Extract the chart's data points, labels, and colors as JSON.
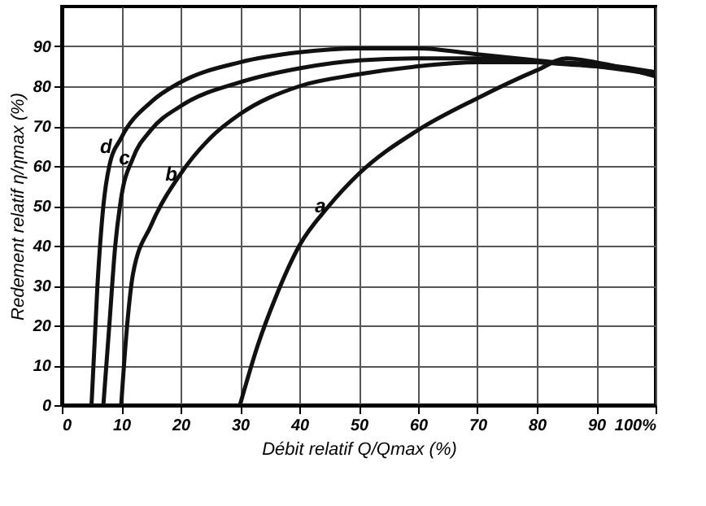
{
  "chart_data": {
    "type": "line",
    "xlabel": "Débit relatif Q/Qmax (%)",
    "ylabel": "Redement relatif η/ηmax (%)",
    "xlim": [
      0,
      100
    ],
    "ylim": [
      0,
      100
    ],
    "xticks": [
      0,
      10,
      20,
      30,
      40,
      50,
      60,
      70,
      80,
      90,
      {
        "value": 100,
        "label": "100%"
      }
    ],
    "yticks": [
      0,
      10,
      20,
      30,
      40,
      50,
      60,
      70,
      80,
      90
    ],
    "grid": true,
    "marker": "none",
    "line_style": "solid",
    "series": [
      {
        "color": "#111111",
        "x": [
          30,
          33,
          36,
          40,
          45,
          50,
          60,
          70,
          80,
          85,
          90,
          100
        ],
        "values": [
          0,
          15,
          27,
          40,
          50,
          58,
          69,
          77,
          84,
          87,
          86,
          82.5
        ]
      },
      {
        "color": "#111111",
        "x": [
          10,
          11,
          12,
          15,
          20,
          25,
          30,
          40,
          50,
          60,
          70,
          80,
          90,
          100
        ],
        "values": [
          0,
          20,
          33,
          45,
          58,
          67,
          73,
          80,
          83,
          85,
          86,
          86,
          85.5,
          83.5
        ]
      },
      {
        "color": "#111111",
        "x": [
          7,
          8,
          9,
          10,
          12,
          15,
          20,
          30,
          40,
          50,
          60,
          70,
          80,
          90,
          100
        ],
        "values": [
          0,
          20,
          40,
          52,
          62,
          69,
          75,
          81,
          84.5,
          86.5,
          87,
          87,
          86,
          85,
          83.5
        ]
      },
      {
        "color": "#111111",
        "x": [
          5,
          6,
          7,
          8,
          10,
          15,
          20,
          30,
          40,
          50,
          60,
          70,
          80,
          90,
          100
        ],
        "values": [
          0,
          30,
          50,
          60,
          67,
          76,
          81,
          86,
          88.5,
          89.5,
          89.5,
          88,
          86.5,
          85,
          83
        ]
      }
    ],
    "annotations": [
      {
        "text": "a",
        "x": 45,
        "y": 50
      },
      {
        "text": "b",
        "x": 20,
        "y": 58
      },
      {
        "text": "c",
        "x": 12,
        "y": 62
      },
      {
        "text": "d",
        "x": 9,
        "y": 65
      }
    ]
  }
}
